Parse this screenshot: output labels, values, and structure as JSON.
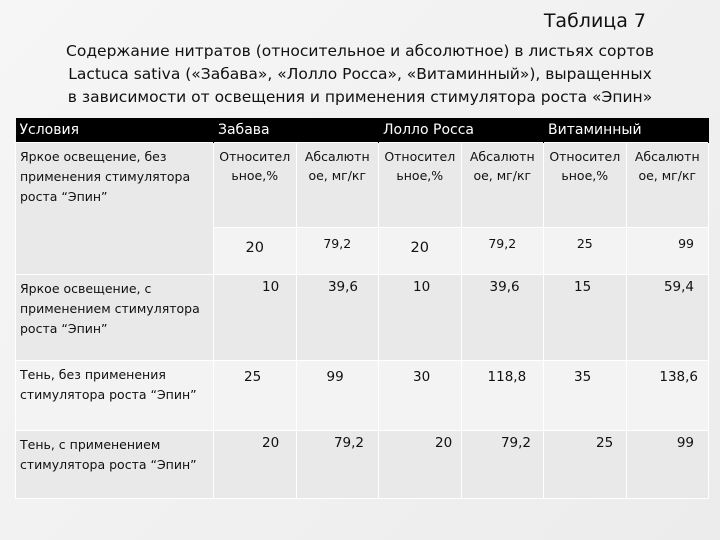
{
  "table_number": "Таблица 7",
  "caption": [
    "Содержание нитратов (относительное и абсолютное) в листьях сортов",
    "Lactuca sativa («Забава», «Лолло Росса», «Витаминный»), выращенных",
    "в зависимости от освещения и применения стимулятора роста «Эпин»"
  ],
  "header": {
    "conditions": "Условия",
    "varieties": [
      "Забава",
      "Лолло Росса",
      "Витаминный"
    ]
  },
  "subheaders": [
    "Относител ьное,%",
    "Абсалютн ое, мг/кг"
  ],
  "rows": [
    {
      "condition": "Яркое освещение, без применения стимулятора роста “Эпин”",
      "values": [
        "20",
        "79,2",
        "20",
        "79,2",
        "25",
        "99"
      ]
    },
    {
      "condition": "Яркое освещение, с применением стимулятора роста “Эпин”",
      "values": [
        "10",
        "39,6",
        "10",
        "39,6",
        "15",
        "59,4"
      ]
    },
    {
      "condition": "Тень, без применения стимулятора роста “Эпин”",
      "values": [
        "25",
        "99",
        "30",
        "118,8",
        "35",
        "138,6"
      ]
    },
    {
      "condition": "Тень, с применением стимулятора роста “Эпин”",
      "values": [
        "20",
        "79,2",
        "20",
        "79,2",
        "25",
        "99"
      ]
    }
  ]
}
